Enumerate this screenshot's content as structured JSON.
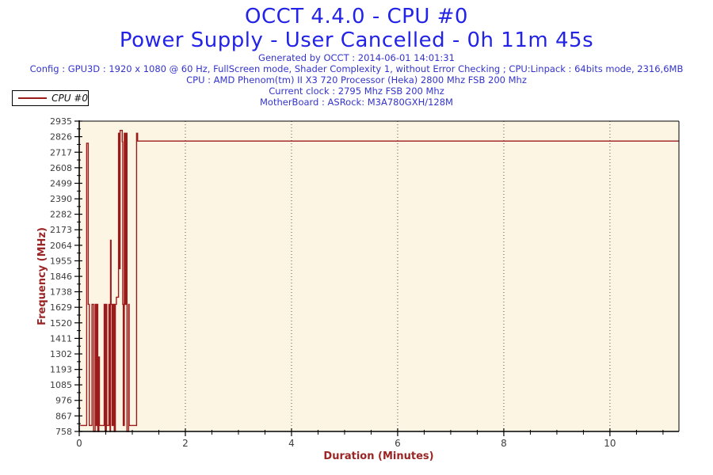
{
  "header": {
    "title": "OCCT 4.4.0 - CPU #0",
    "subtitle": "Power Supply - User Cancelled - 0h 11m 45s",
    "generated": "Generated by OCCT : 2014-06-01 14:01:31",
    "config": "Config : GPU3D : 1920 x 1080 @ 60 Hz, FullScreen mode, Shader Complexity 1, without Error Checking ; CPU:Linpack : 64bits mode, 2316,6MB",
    "cpu": "CPU : AMD Phenom(tm) II X3 720 Processor (Heka) 2800 Mhz FSB 200 Mhz",
    "current_clock": "Current clock : 2795 Mhz FSB 200 Mhz",
    "motherboard": "MotherBoard : ASRock: M3A780GXH/128M"
  },
  "legend": {
    "series_label": "CPU #0"
  },
  "chart_data": {
    "type": "line",
    "title": "OCCT 4.4.0 - CPU #0",
    "xlabel": "Duration (Minutes)",
    "ylabel": "Frequency (MHz)",
    "xlim": [
      0,
      11.3
    ],
    "ylim": [
      758,
      2935
    ],
    "x_major_ticks": [
      0,
      2,
      4,
      6,
      8,
      10
    ],
    "x_minor_step": 0.5,
    "y_ticks": [
      758,
      867,
      976,
      1085,
      1193,
      1302,
      1411,
      1520,
      1629,
      1738,
      1846,
      1955,
      2064,
      2173,
      2282,
      2390,
      2499,
      2608,
      2717,
      2826,
      2935
    ],
    "grid": "vertical dotted gridlines at x major ticks, plot background cream",
    "legend_position": "top-left, above plot",
    "series": [
      {
        "name": "CPU #0",
        "color": "#9b1b1b",
        "units": "MHz over minutes; idle ~800 MHz, steps 1650/2100, boost ~2850, steady 2795 after 1.1 min",
        "points": [
          [
            0.02,
            800
          ],
          [
            0.14,
            800
          ],
          [
            0.14,
            2780
          ],
          [
            0.17,
            2780
          ],
          [
            0.17,
            1650
          ],
          [
            0.19,
            1650
          ],
          [
            0.19,
            800
          ],
          [
            0.24,
            800
          ],
          [
            0.24,
            1650
          ],
          [
            0.27,
            1650
          ],
          [
            0.27,
            758
          ],
          [
            0.3,
            758
          ],
          [
            0.3,
            1650
          ],
          [
            0.32,
            1650
          ],
          [
            0.32,
            800
          ],
          [
            0.34,
            800
          ],
          [
            0.34,
            1650
          ],
          [
            0.35,
            1650
          ],
          [
            0.35,
            758
          ],
          [
            0.37,
            758
          ],
          [
            0.37,
            1280
          ],
          [
            0.38,
            1280
          ],
          [
            0.38,
            800
          ],
          [
            0.47,
            800
          ],
          [
            0.47,
            1650
          ],
          [
            0.49,
            1650
          ],
          [
            0.49,
            758
          ],
          [
            0.51,
            758
          ],
          [
            0.51,
            1650
          ],
          [
            0.52,
            1650
          ],
          [
            0.52,
            800
          ],
          [
            0.56,
            800
          ],
          [
            0.56,
            1650
          ],
          [
            0.58,
            1650
          ],
          [
            0.58,
            758
          ],
          [
            0.59,
            758
          ],
          [
            0.59,
            2100
          ],
          [
            0.6,
            2100
          ],
          [
            0.6,
            1650
          ],
          [
            0.62,
            1650
          ],
          [
            0.62,
            800
          ],
          [
            0.64,
            800
          ],
          [
            0.64,
            1650
          ],
          [
            0.66,
            1650
          ],
          [
            0.66,
            758
          ],
          [
            0.68,
            758
          ],
          [
            0.68,
            1650
          ],
          [
            0.7,
            1650
          ],
          [
            0.7,
            1700
          ],
          [
            0.74,
            1700
          ],
          [
            0.74,
            2850
          ],
          [
            0.76,
            2850
          ],
          [
            0.76,
            1900
          ],
          [
            0.77,
            1900
          ],
          [
            0.77,
            2870
          ],
          [
            0.81,
            2870
          ],
          [
            0.81,
            2790
          ],
          [
            0.82,
            2790
          ],
          [
            0.82,
            1650
          ],
          [
            0.83,
            1650
          ],
          [
            0.83,
            800
          ],
          [
            0.85,
            800
          ],
          [
            0.85,
            2850
          ],
          [
            0.87,
            2850
          ],
          [
            0.87,
            1650
          ],
          [
            0.89,
            1650
          ],
          [
            0.89,
            2850
          ],
          [
            0.9,
            2850
          ],
          [
            0.9,
            758
          ],
          [
            0.93,
            758
          ],
          [
            0.93,
            1650
          ],
          [
            0.94,
            1650
          ],
          [
            0.94,
            800
          ],
          [
            1.08,
            800
          ],
          [
            1.08,
            2850
          ],
          [
            1.1,
            2850
          ],
          [
            1.1,
            2795
          ],
          [
            11.3,
            2795
          ]
        ]
      }
    ]
  },
  "colors": {
    "title_blue": "#2323e8",
    "info_blue": "#3434cc",
    "series_red": "#9b1b1b",
    "axis_title_red": "#9b2525",
    "plot_bg": "#fdf5e4",
    "grid": "#555555",
    "tick_text": "#3d3d3d"
  }
}
